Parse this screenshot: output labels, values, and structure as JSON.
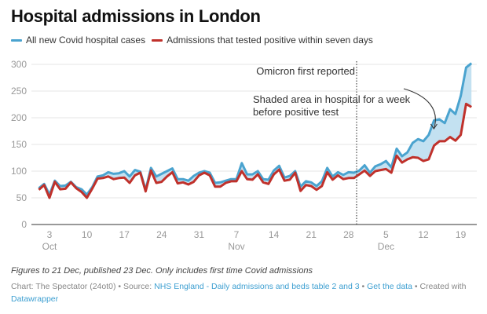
{
  "title": "Hospital admissions in London",
  "legend": [
    {
      "label": "All new Covid hospital cases",
      "color": "#4aa3cf"
    },
    {
      "label": "Admissions that tested positive within seven days",
      "color": "#c0312b"
    }
  ],
  "chart_data": {
    "type": "line",
    "title": "Hospital admissions in London",
    "xlabel": "",
    "ylabel": "",
    "ylim": [
      0,
      300
    ],
    "yticks": [
      0,
      50,
      100,
      150,
      200,
      250,
      300
    ],
    "grid": true,
    "legend_position": "top-left",
    "x_start": "2021-10-01",
    "x_end": "2021-12-21",
    "xticks": [
      {
        "day": 3,
        "label": "3",
        "month": "Oct"
      },
      {
        "day": 10,
        "label": "10",
        "month": ""
      },
      {
        "day": 17,
        "label": "17",
        "month": ""
      },
      {
        "day": 24,
        "label": "24",
        "month": ""
      },
      {
        "day": 31,
        "label": "31",
        "month": ""
      },
      {
        "day": 38,
        "label": "7",
        "month": "Nov"
      },
      {
        "day": 45,
        "label": "14",
        "month": ""
      },
      {
        "day": 52,
        "label": "21",
        "month": ""
      },
      {
        "day": 59,
        "label": "28",
        "month": ""
      },
      {
        "day": 66,
        "label": "5",
        "month": "Dec"
      },
      {
        "day": 73,
        "label": "12",
        "month": ""
      },
      {
        "day": 80,
        "label": "19",
        "month": ""
      }
    ],
    "series": [
      {
        "name": "All new Covid hospital cases",
        "color": "#4aa3cf",
        "values": [
          68,
          76,
          56,
          82,
          72,
          73,
          80,
          70,
          66,
          56,
          70,
          90,
          92,
          98,
          95,
          96,
          100,
          90,
          102,
          99,
          65,
          106,
          90,
          95,
          100,
          105,
          85,
          85,
          82,
          91,
          97,
          100,
          97,
          78,
          79,
          82,
          85,
          85,
          115,
          94,
          94,
          100,
          85,
          84,
          101,
          110,
          88,
          91,
          100,
          71,
          81,
          79,
          72,
          81,
          106,
          90,
          98,
          93,
          98,
          97,
          101,
          111,
          97,
          109,
          113,
          119,
          107,
          142,
          128,
          135,
          153,
          160,
          156,
          168,
          195,
          197,
          190,
          216,
          207,
          241,
          294,
          302
        ]
      },
      {
        "name": "Admissions that tested positive within seven days",
        "color": "#c0312b",
        "values": [
          65,
          74,
          50,
          80,
          66,
          67,
          79,
          68,
          61,
          50,
          67,
          86,
          87,
          90,
          85,
          87,
          88,
          78,
          92,
          97,
          62,
          101,
          78,
          80,
          90,
          98,
          77,
          79,
          75,
          80,
          92,
          97,
          92,
          71,
          71,
          78,
          81,
          81,
          100,
          85,
          84,
          94,
          79,
          76,
          94,
          103,
          82,
          84,
          97,
          63,
          74,
          72,
          65,
          72,
          98,
          84,
          92,
          85,
          87,
          87,
          94,
          101,
          91,
          100,
          102,
          104,
          97,
          129,
          116,
          122,
          126,
          125,
          119,
          122,
          148,
          156,
          156,
          164,
          157,
          168,
          226,
          220
        ]
      }
    ],
    "shaded_region": {
      "between": [
        "All new Covid hospital cases",
        "Admissions that tested positive within seven days"
      ],
      "color": "#b9dcee"
    },
    "annotations": [
      {
        "text": "Omicron first reported",
        "type": "vertical-line",
        "day": 59.5
      },
      {
        "text_lines": [
          "Shaded area in hospital for a week",
          "before positive test"
        ],
        "type": "arrow",
        "target_day": 76
      }
    ]
  },
  "footer": {
    "note": "Figures to 21 Dec, published 23 Dec. Only includes first time Covid admissions",
    "chart_credit": "Chart: The Spectator (24ot0)",
    "source_prefix": "Source:",
    "source_link": "NHS England - Daily admissions and beds table 2 and 3",
    "data_link": "Get the data",
    "created_prefix": "Created with",
    "created_link": "Datawrapper",
    "separator": "•"
  }
}
